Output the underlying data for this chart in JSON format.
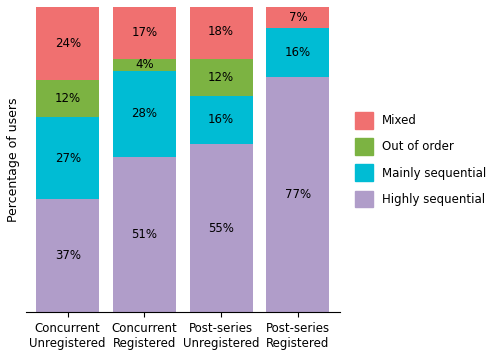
{
  "categories": [
    "Concurrent\nUnregistered",
    "Concurrent\nRegistered",
    "Post-series\nUnregistered",
    "Post-series\nRegistered"
  ],
  "highly_sequential": [
    37,
    51,
    55,
    77
  ],
  "mainly_sequential": [
    27,
    28,
    16,
    16
  ],
  "out_of_order": [
    12,
    4,
    12,
    0
  ],
  "mixed": [
    24,
    17,
    18,
    7
  ],
  "colors": {
    "highly_sequential": "#b09dc9",
    "mainly_sequential": "#00bcd4",
    "out_of_order": "#7cb342",
    "mixed": "#f07070"
  },
  "legend_labels": [
    "Mixed",
    "Out of order",
    "Mainly sequential",
    "Highly sequential"
  ],
  "ylabel": "Percentage of users",
  "ylim": [
    0,
    100
  ],
  "bar_width": 0.82,
  "font_size": 8.5
}
